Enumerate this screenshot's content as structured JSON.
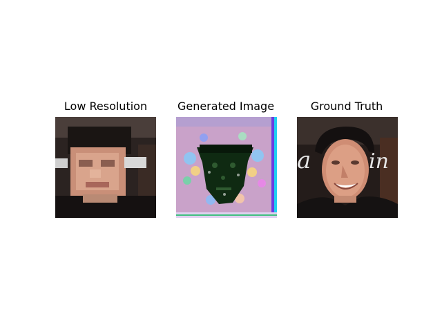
{
  "figure": {
    "panels": [
      {
        "title": "Low Resolution",
        "image": "pixelated-face-photo"
      },
      {
        "title": "Generated Image",
        "image": "noisy-generated-face"
      },
      {
        "title": "Ground Truth",
        "image": "face-photo"
      }
    ],
    "colors": {
      "background": "#ffffff",
      "generated_tint": "#c9a2c9",
      "photo_bg": "#2a2220",
      "skin": "#d9a48c"
    }
  }
}
